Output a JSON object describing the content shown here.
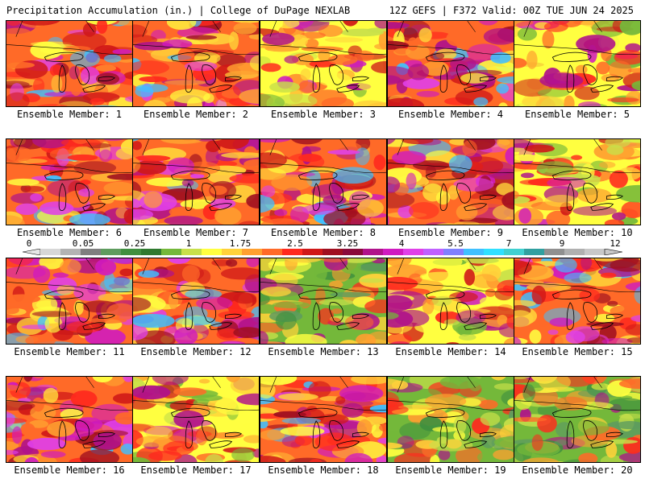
{
  "header": {
    "left": "Precipitation Accumulation (in.) | College of DuPage NEXLAB",
    "right": "12Z GEFS | F372 Valid: 00Z TUE JUN 24 2025"
  },
  "legend": {
    "labels": [
      "0",
      "0.05",
      "0.25",
      "1",
      "1.75",
      "2.5",
      "3.25",
      "4",
      "5.5",
      "7",
      "9",
      "12"
    ],
    "colors": [
      "#d7d7d7",
      "#b3b3b3",
      "#7f7f7f",
      "#5e9c5e",
      "#3f8f3f",
      "#2f7a2f",
      "#74b83a",
      "#c8e04a",
      "#ffff40",
      "#ffd23a",
      "#ffa030",
      "#ff6a28",
      "#ff2a1e",
      "#d01818",
      "#a00f20",
      "#8a0a3a",
      "#b0128a",
      "#d01ac0",
      "#e040e8",
      "#c060ff",
      "#8080ff",
      "#40c0ff",
      "#30e0ff",
      "#40d0d0",
      "#30a0a0",
      "#909090",
      "#b0b0b0",
      "#c8c8c8"
    ]
  },
  "members": [
    {
      "label": "Ensemble Member: 1",
      "profile": "wet"
    },
    {
      "label": "Ensemble Member: 2",
      "profile": "wet"
    },
    {
      "label": "Ensemble Member: 3",
      "profile": "mixed"
    },
    {
      "label": "Ensemble Member: 4",
      "profile": "wet"
    },
    {
      "label": "Ensemble Member: 5",
      "profile": "mixed"
    },
    {
      "label": "Ensemble Member: 6",
      "profile": "wet"
    },
    {
      "label": "Ensemble Member: 7",
      "profile": "wet"
    },
    {
      "label": "Ensemble Member: 8",
      "profile": "wet"
    },
    {
      "label": "Ensemble Member: 9",
      "profile": "wet"
    },
    {
      "label": "Ensemble Member: 10",
      "profile": "mixed"
    },
    {
      "label": "Ensemble Member: 11",
      "profile": "wet"
    },
    {
      "label": "Ensemble Member: 12",
      "profile": "wet"
    },
    {
      "label": "Ensemble Member: 13",
      "profile": "dry"
    },
    {
      "label": "Ensemble Member: 14",
      "profile": "mixed"
    },
    {
      "label": "Ensemble Member: 15",
      "profile": "wet"
    },
    {
      "label": "Ensemble Member: 16",
      "profile": "wet"
    },
    {
      "label": "Ensemble Member: 17",
      "profile": "mixed"
    },
    {
      "label": "Ensemble Member: 18",
      "profile": "wet"
    },
    {
      "label": "Ensemble Member: 19",
      "profile": "dry"
    },
    {
      "label": "Ensemble Member: 20",
      "profile": "dry"
    }
  ]
}
